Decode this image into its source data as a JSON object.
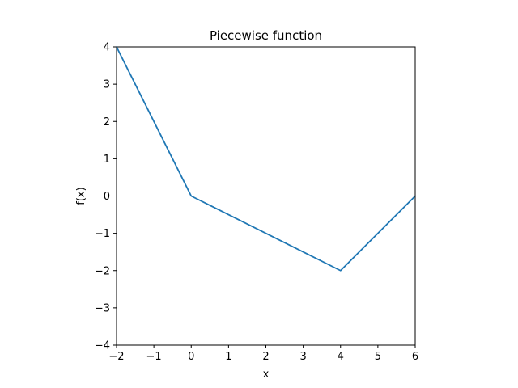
{
  "chart_data": {
    "type": "line",
    "title": "Piecewise function",
    "xlabel": "x",
    "ylabel": "f(x)",
    "xlim": [
      -2,
      6
    ],
    "ylim": [
      -4,
      4
    ],
    "x_ticks": [
      -2,
      -1,
      0,
      1,
      2,
      3,
      4,
      5,
      6
    ],
    "y_ticks": [
      -4,
      -3,
      -2,
      -1,
      0,
      1,
      2,
      3,
      4
    ],
    "grid": false,
    "series": [
      {
        "color": "#1f77b4",
        "points": [
          [
            -2,
            4
          ],
          [
            0,
            0
          ],
          [
            4,
            -2
          ],
          [
            6,
            0
          ]
        ]
      }
    ]
  }
}
